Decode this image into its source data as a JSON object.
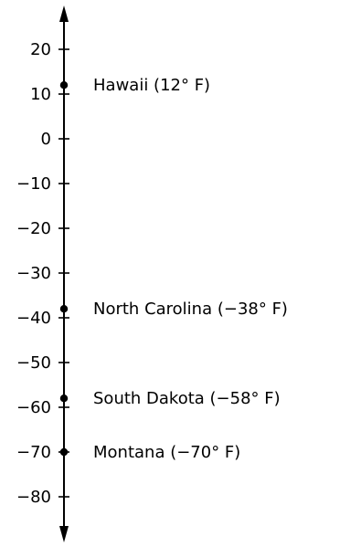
{
  "number_line": {
    "orientation": "vertical",
    "range": [
      -80,
      20
    ],
    "step": 10,
    "ticks": [
      {
        "value": 20,
        "label": "20"
      },
      {
        "value": 10,
        "label": "10"
      },
      {
        "value": 0,
        "label": "0"
      },
      {
        "value": -10,
        "label": "−10"
      },
      {
        "value": -20,
        "label": "−20"
      },
      {
        "value": -30,
        "label": "−30"
      },
      {
        "value": -40,
        "label": "−40"
      },
      {
        "value": -50,
        "label": "−50"
      },
      {
        "value": -60,
        "label": "−60"
      },
      {
        "value": -70,
        "label": "−70"
      },
      {
        "value": -80,
        "label": "−80"
      }
    ],
    "points": [
      {
        "value": 12,
        "label": "Hawaii (12° F)"
      },
      {
        "value": -38,
        "label": "North Carolina (−38° F)"
      },
      {
        "value": -58,
        "label": "South Dakota (−58° F)"
      },
      {
        "value": -70,
        "label": "Montana (−70° F)"
      }
    ],
    "colors": {
      "line": "#000000",
      "point": "#000000"
    }
  }
}
